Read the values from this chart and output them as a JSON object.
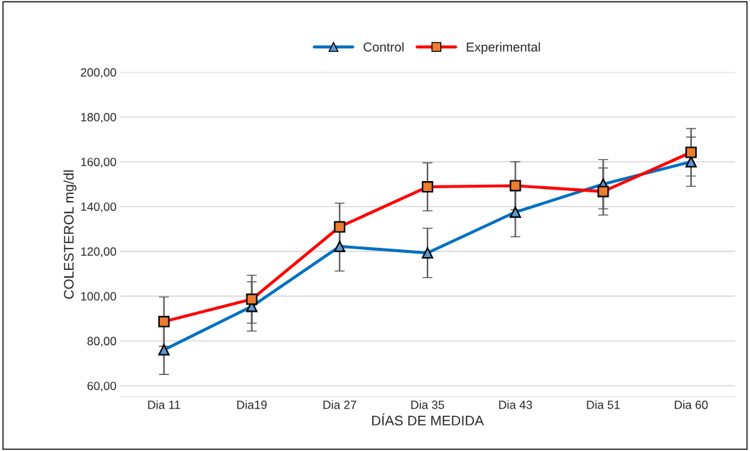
{
  "chart_data": {
    "type": "line",
    "xlabel": "DÍAS DE MEDIDA",
    "ylabel": "COLESTEROL mg/dl",
    "categories": [
      "Dia 11",
      "Dia19",
      "Dia 27",
      "Dia 35",
      "Dia 43",
      "Dia 51",
      "Dia 60"
    ],
    "series": [
      {
        "name": "Control",
        "color": "#0070c0",
        "marker": "triangle",
        "values": [
          76,
          95.4,
          122.2,
          119.3,
          137.5,
          150,
          160
        ],
        "errors": [
          11,
          11,
          11,
          11,
          11,
          11,
          11
        ]
      },
      {
        "name": "Experimental",
        "color": "#ff0000",
        "marker": "square",
        "values": [
          88.6,
          98.6,
          130.9,
          148.8,
          149.3,
          146.7,
          164.2
        ],
        "errors": [
          11,
          10.7,
          10.6,
          10.7,
          10.7,
          10.5,
          10.6
        ]
      }
    ],
    "ylim": [
      55,
      200
    ],
    "yticks": [
      {
        "value": 60,
        "label": "60,00"
      },
      {
        "value": 80,
        "label": "80,00"
      },
      {
        "value": 100,
        "label": "100,00"
      },
      {
        "value": 120,
        "label": "120,00"
      },
      {
        "value": 140,
        "label": "140,00"
      },
      {
        "value": 160,
        "label": "160,00"
      },
      {
        "value": 180,
        "label": "180,00"
      },
      {
        "value": 200,
        "label": "200,00"
      }
    ],
    "grid": "y",
    "legend": "top"
  }
}
